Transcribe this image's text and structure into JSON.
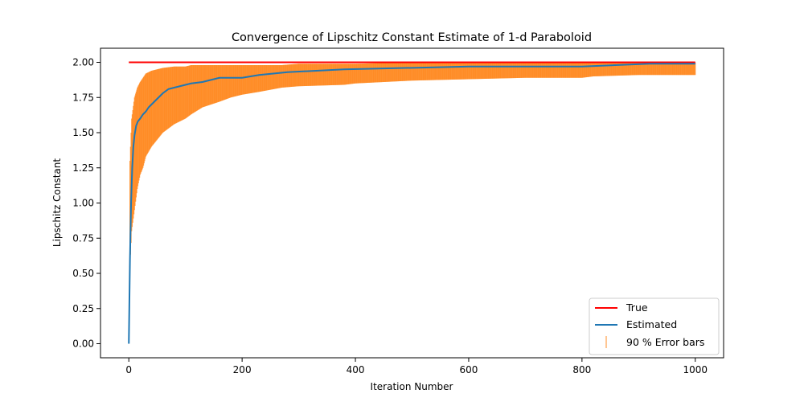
{
  "chart_data": {
    "type": "line",
    "title": "Convergence of Lipschitz Constant Estimate of 1-d Paraboloid",
    "xlabel": "Iteration Number",
    "ylabel": "Lipschitz Constant",
    "xlim": [
      -50,
      1050
    ],
    "ylim": [
      -0.1,
      2.1
    ],
    "xticks": [
      0,
      200,
      400,
      600,
      800,
      1000
    ],
    "yticks": [
      0.0,
      0.25,
      0.5,
      0.75,
      1.0,
      1.25,
      1.5,
      1.75,
      2.0
    ],
    "xtick_labels": [
      "0",
      "200",
      "400",
      "600",
      "800",
      "1000"
    ],
    "ytick_labels": [
      "0.00",
      "0.25",
      "0.50",
      "0.75",
      "1.00",
      "1.25",
      "1.50",
      "1.75",
      "2.00"
    ],
    "grid": false,
    "legend_position": "bottom-right",
    "series": [
      {
        "name": "True",
        "color": "#ff0000",
        "x": [
          0,
          1000
        ],
        "y": [
          2.0,
          2.0
        ]
      },
      {
        "name": "Estimated",
        "color": "#1f77b4",
        "x": [
          0,
          2,
          4,
          6,
          8,
          10,
          13,
          16,
          20,
          25,
          30,
          35,
          40,
          45,
          50,
          55,
          60,
          70,
          80,
          90,
          100,
          110,
          130,
          160,
          200,
          230,
          280,
          380,
          600,
          800,
          920,
          1000
        ],
        "y": [
          0.0,
          0.6,
          1.0,
          1.25,
          1.4,
          1.48,
          1.55,
          1.58,
          1.6,
          1.63,
          1.65,
          1.68,
          1.7,
          1.72,
          1.74,
          1.76,
          1.78,
          1.81,
          1.82,
          1.83,
          1.84,
          1.85,
          1.86,
          1.89,
          1.89,
          1.91,
          1.93,
          1.95,
          1.97,
          1.97,
          1.99,
          1.99
        ]
      }
    ],
    "error_band": {
      "name": "90 % Error bars",
      "color": "#ff7f0e",
      "x": [
        2,
        5,
        10,
        15,
        20,
        25,
        30,
        40,
        50,
        60,
        80,
        100,
        110,
        130,
        160,
        180,
        200,
        230,
        270,
        300,
        380,
        400,
        500,
        600,
        700,
        800,
        820,
        900,
        1000
      ],
      "lower": [
        0.55,
        0.8,
        0.95,
        1.1,
        1.2,
        1.25,
        1.33,
        1.4,
        1.45,
        1.5,
        1.56,
        1.6,
        1.63,
        1.68,
        1.72,
        1.75,
        1.77,
        1.79,
        1.82,
        1.83,
        1.84,
        1.85,
        1.87,
        1.88,
        1.89,
        1.89,
        1.9,
        1.91,
        1.91
      ],
      "upper": [
        1.3,
        1.6,
        1.75,
        1.82,
        1.86,
        1.89,
        1.92,
        1.94,
        1.95,
        1.96,
        1.97,
        1.97,
        1.98,
        1.98,
        1.98,
        1.98,
        1.98,
        1.98,
        1.98,
        1.99,
        1.99,
        1.99,
        2.0,
        2.0,
        2.0,
        2.0,
        2.0,
        2.0,
        2.0
      ]
    }
  }
}
